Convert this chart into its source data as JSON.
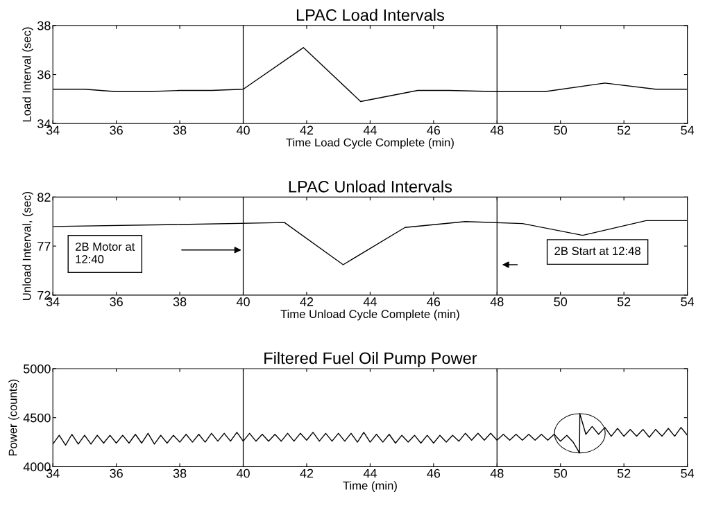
{
  "chart_data": [
    {
      "type": "line",
      "title": "LPAC Load Intervals",
      "xlabel": "Time Load Cycle Complete (min)",
      "ylabel": "Load Interval (sec)",
      "x": [
        34,
        35,
        36,
        37,
        38,
        39,
        40,
        41.9,
        43.7,
        45.5,
        46.5,
        48,
        49.5,
        51.4,
        53,
        54
      ],
      "series": [
        {
          "color": "#000000",
          "values": [
            35.4,
            35.4,
            35.3,
            35.3,
            35.35,
            35.35,
            35.4,
            37.1,
            34.9,
            35.35,
            35.35,
            35.3,
            35.3,
            35.65,
            35.4,
            35.4
          ]
        }
      ],
      "xlim": [
        34,
        54
      ],
      "xticks": [
        34,
        36,
        38,
        40,
        42,
        44,
        46,
        48,
        50,
        52,
        54
      ],
      "ylim": [
        34,
        38
      ],
      "yticks": [
        34,
        36,
        38
      ],
      "ref_lines": [
        {
          "axis": "x",
          "value": 40,
          "color": "#000000"
        },
        {
          "axis": "x",
          "value": 48,
          "color": "#000000"
        }
      ],
      "grid": false,
      "legend": false
    },
    {
      "type": "line",
      "title": "LPAC Unload Intervals",
      "xlabel": "Time Unload Cycle Complete (min)",
      "ylabel": "Unload Interval, (sec)",
      "x": [
        34,
        38,
        41.3,
        43.15,
        45.1,
        47,
        48.8,
        50.7,
        52.7,
        54
      ],
      "series": [
        {
          "color": "#000000",
          "values": [
            79.0,
            79.2,
            79.4,
            75.1,
            78.9,
            79.5,
            79.3,
            78.1,
            79.6,
            79.6
          ]
        }
      ],
      "xlim": [
        34,
        54
      ],
      "xticks": [
        34,
        36,
        38,
        40,
        42,
        44,
        46,
        48,
        50,
        52,
        54
      ],
      "ylim": [
        72,
        82
      ],
      "yticks": [
        72,
        77,
        82
      ],
      "ref_lines": [
        {
          "axis": "x",
          "value": 40,
          "color": "#000000"
        },
        {
          "axis": "x",
          "value": 48,
          "color": "#000000"
        }
      ],
      "grid": false,
      "legend": false,
      "annotations": [
        "2B Motor at\n12:40",
        "2B Start at 12:48"
      ]
    },
    {
      "type": "line",
      "title": "Filtered Fuel Oil Pump Power",
      "xlabel": "Time (min)",
      "ylabel": "Power (counts)",
      "x": [
        34.0,
        34.2,
        34.4,
        34.6,
        34.8,
        35.0,
        35.2,
        35.4,
        35.6,
        35.8,
        36.0,
        36.2,
        36.4,
        36.6,
        36.8,
        37.0,
        37.2,
        37.4,
        37.6,
        37.8,
        38.0,
        38.2,
        38.4,
        38.6,
        38.8,
        39.0,
        39.2,
        39.4,
        39.6,
        39.8,
        40.0,
        40.2,
        40.4,
        40.6,
        40.8,
        41.0,
        41.2,
        41.4,
        41.6,
        41.8,
        42.0,
        42.2,
        42.4,
        42.6,
        42.8,
        43.0,
        43.2,
        43.4,
        43.6,
        43.8,
        44.0,
        44.2,
        44.4,
        44.6,
        44.8,
        45.0,
        45.2,
        45.4,
        45.6,
        45.8,
        46.0,
        46.2,
        46.4,
        46.6,
        46.8,
        47.0,
        47.2,
        47.4,
        47.6,
        47.8,
        48.0,
        48.2,
        48.4,
        48.6,
        48.8,
        49.0,
        49.2,
        49.4,
        49.6,
        49.8,
        50.0,
        50.2,
        50.4,
        50.6,
        50.61,
        50.8,
        51.0,
        51.2,
        51.4,
        51.6,
        51.8,
        52.0,
        52.2,
        52.4,
        52.6,
        52.8,
        53.0,
        53.2,
        53.4,
        53.6,
        53.8,
        54.0
      ],
      "series": [
        {
          "color": "#000000",
          "values": [
            4230,
            4320,
            4220,
            4330,
            4230,
            4320,
            4230,
            4320,
            4240,
            4320,
            4240,
            4320,
            4240,
            4330,
            4240,
            4340,
            4230,
            4320,
            4240,
            4320,
            4250,
            4330,
            4250,
            4330,
            4250,
            4340,
            4260,
            4340,
            4260,
            4350,
            4260,
            4340,
            4260,
            4330,
            4260,
            4330,
            4260,
            4340,
            4260,
            4340,
            4270,
            4350,
            4260,
            4340,
            4260,
            4340,
            4260,
            4340,
            4250,
            4350,
            4250,
            4330,
            4250,
            4330,
            4240,
            4320,
            4250,
            4320,
            4240,
            4320,
            4240,
            4320,
            4250,
            4320,
            4260,
            4340,
            4270,
            4340,
            4270,
            4340,
            4270,
            4330,
            4270,
            4330,
            4270,
            4330,
            4270,
            4330,
            4270,
            4330,
            4260,
            4320,
            4250,
            4140,
            4540,
            4330,
            4410,
            4330,
            4400,
            4310,
            4390,
            4310,
            4380,
            4310,
            4380,
            4300,
            4380,
            4310,
            4390,
            4310,
            4400,
            4320
          ]
        }
      ],
      "xlim": [
        34,
        54
      ],
      "xticks": [
        34,
        36,
        38,
        40,
        42,
        44,
        46,
        48,
        50,
        52,
        54
      ],
      "ylim": [
        4000,
        5000
      ],
      "yticks": [
        4000,
        4500,
        5000
      ],
      "ref_lines": [
        {
          "axis": "x",
          "value": 40,
          "color": "#000000"
        },
        {
          "axis": "x",
          "value": 48,
          "color": "#000000"
        }
      ],
      "grid": false,
      "legend": false
    }
  ]
}
